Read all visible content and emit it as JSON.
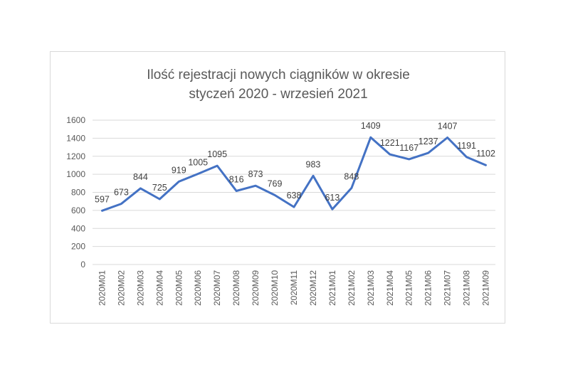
{
  "chart_data": {
    "type": "line",
    "title_lines": [
      "Ilość rejestracji nowych ciągników w okresie",
      "styczeń 2020 - wrzesień 2021"
    ],
    "xlabel": "",
    "ylabel": "",
    "categories": [
      "2020M01",
      "2020M02",
      "2020M03",
      "2020M04",
      "2020M05",
      "2020M06",
      "2020M07",
      "2020M08",
      "2020M09",
      "2020M10",
      "2020M11",
      "2020M12",
      "2021M01",
      "2021M02",
      "2021M03",
      "2021M04",
      "2021M05",
      "2021M06",
      "2021M07",
      "2021M08",
      "2021M09"
    ],
    "series": [
      {
        "values": [
          597,
          673,
          844,
          725,
          919,
          1005,
          1095,
          816,
          873,
          769,
          638,
          983,
          613,
          848,
          1409,
          1221,
          1167,
          1237,
          1407,
          1191,
          1102
        ]
      }
    ],
    "ylim": [
      0,
      1600
    ],
    "yticks": [
      0,
      200,
      400,
      600,
      800,
      1000,
      1200,
      1400,
      1600
    ],
    "grid": true,
    "legend": "none",
    "line_color": "#4472c4"
  }
}
